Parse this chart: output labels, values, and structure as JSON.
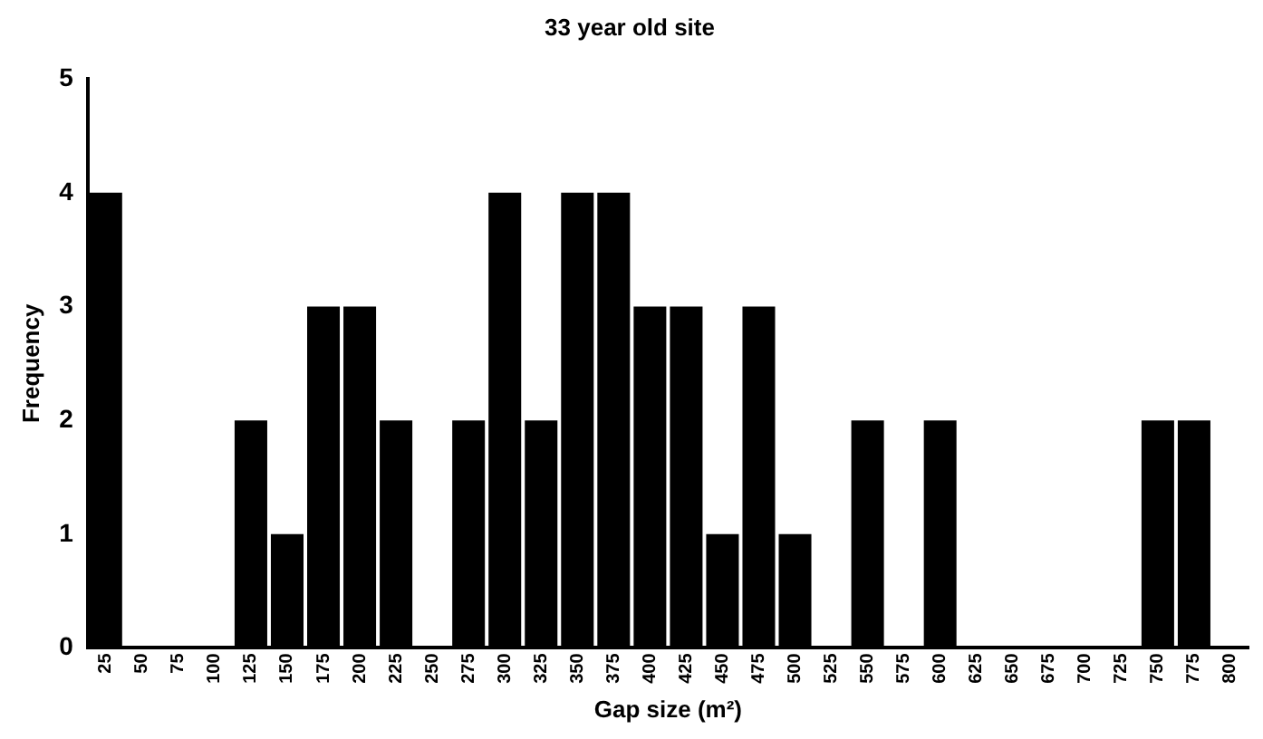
{
  "chart_data": {
    "type": "bar",
    "title": "33 year old site",
    "xlabel": "Gap size (m²)",
    "ylabel": "Frequency",
    "categories": [
      "25",
      "50",
      "75",
      "100",
      "125",
      "150",
      "175",
      "200",
      "225",
      "250",
      "275",
      "300",
      "325",
      "350",
      "375",
      "400",
      "425",
      "450",
      "475",
      "500",
      "525",
      "550",
      "575",
      "600",
      "625",
      "650",
      "675",
      "700",
      "725",
      "750",
      "775",
      "800"
    ],
    "values": [
      4,
      0,
      0,
      0,
      2,
      1,
      3,
      3,
      2,
      0,
      2,
      4,
      2,
      4,
      4,
      3,
      3,
      1,
      3,
      1,
      0,
      2,
      0,
      2,
      0,
      0,
      0,
      0,
      0,
      2,
      2,
      0
    ],
    "color": "#000000",
    "ylim": [
      0,
      5
    ],
    "yticks": [
      0,
      1,
      2,
      3,
      4,
      5
    ],
    "grid": false,
    "legend": false
  }
}
